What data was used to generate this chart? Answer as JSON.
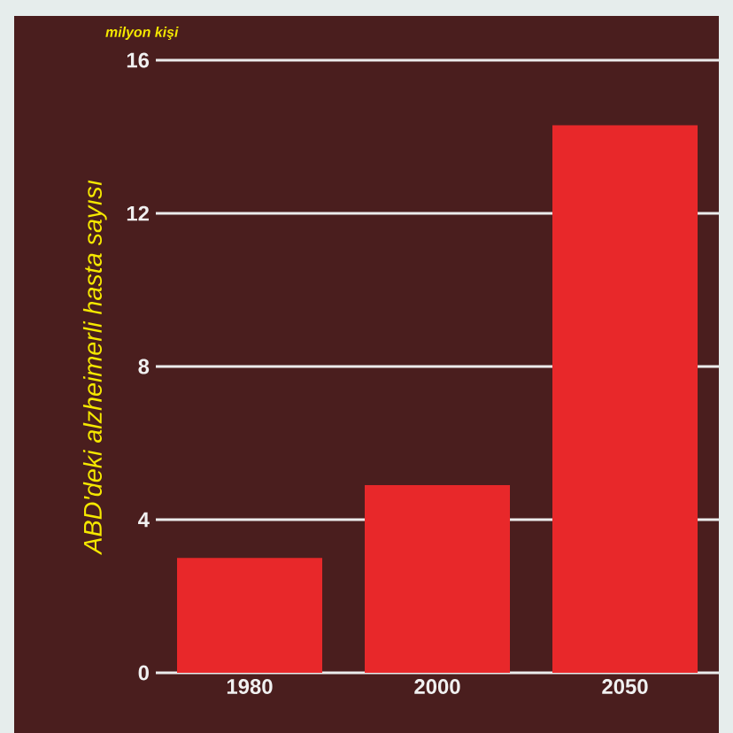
{
  "chart_data": {
    "type": "bar",
    "ylabel": "ABD'deki alzheimerli hasta sayısı",
    "annotations": [
      "milyon kişi"
    ],
    "categories": [
      "1980",
      "2000",
      "2050"
    ],
    "values": [
      3.0,
      4.9,
      14.3
    ],
    "color": "#e8282a",
    "ylim": [
      0,
      16
    ],
    "yticks": [
      0,
      4,
      8,
      12,
      16
    ],
    "grid": "y"
  }
}
